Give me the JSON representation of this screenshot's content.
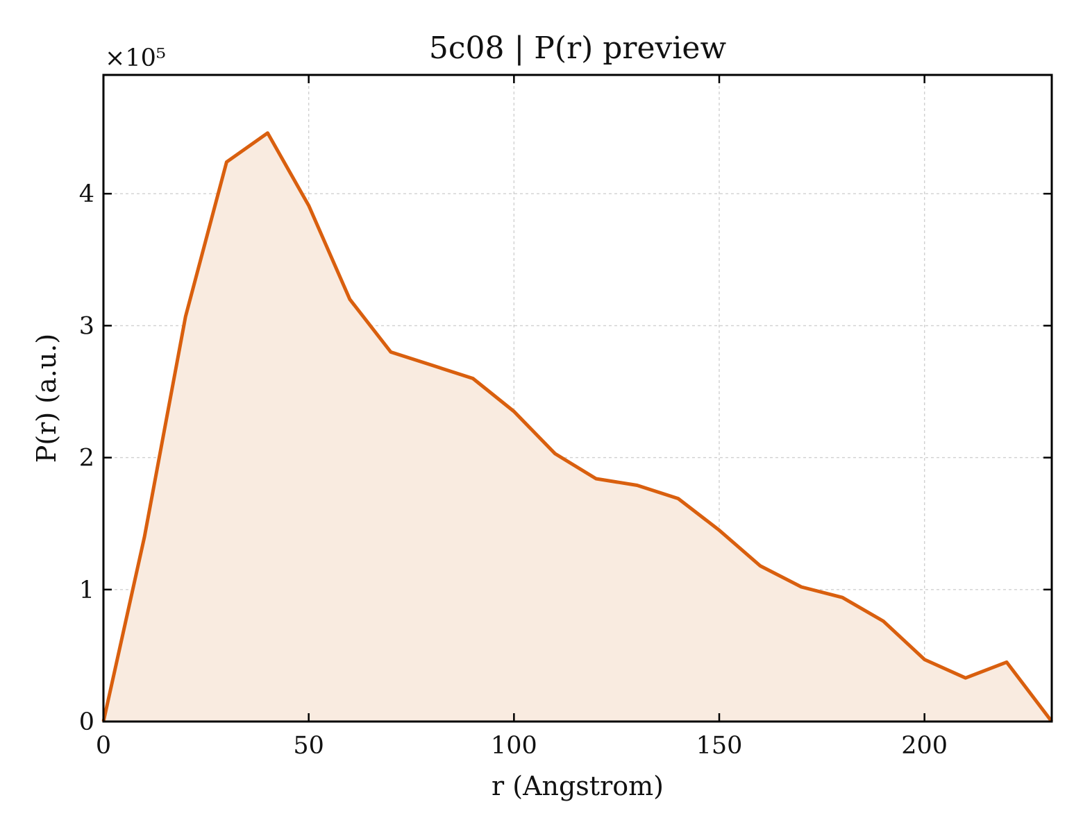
{
  "chart_data": {
    "type": "area",
    "title": "5c08 | P(r) preview",
    "xlabel": "r (Angstrom)",
    "ylabel": "P(r) (a.u.)",
    "y_multiplier_label": "×10⁵",
    "y_scale_factor": 100000,
    "xlim": [
      0,
      231
    ],
    "ylim": [
      0,
      4.9
    ],
    "x_ticks": [
      0,
      50,
      100,
      150,
      200
    ],
    "x_tick_labels": [
      "0",
      "50",
      "100",
      "150",
      "200"
    ],
    "y_ticks": [
      0,
      1,
      2,
      3,
      4
    ],
    "y_tick_labels": [
      "0",
      "1",
      "2",
      "3",
      "4"
    ],
    "grid": true,
    "ticks_direction": "in",
    "line_color": "#d95f0e",
    "fill_color": "#f9ebe0",
    "series": [
      {
        "x": [
          0,
          10,
          20,
          30,
          40,
          50,
          60,
          70,
          80,
          90,
          100,
          110,
          120,
          130,
          140,
          150,
          160,
          170,
          180,
          190,
          200,
          210,
          220,
          231
        ],
        "y": [
          0,
          1.4,
          3.07,
          4.24,
          4.46,
          3.91,
          3.2,
          2.8,
          2.7,
          2.6,
          2.35,
          2.03,
          1.84,
          1.79,
          1.69,
          1.45,
          1.18,
          1.02,
          0.94,
          0.76,
          0.47,
          0.33,
          0.45,
          0.0
        ]
      }
    ]
  }
}
